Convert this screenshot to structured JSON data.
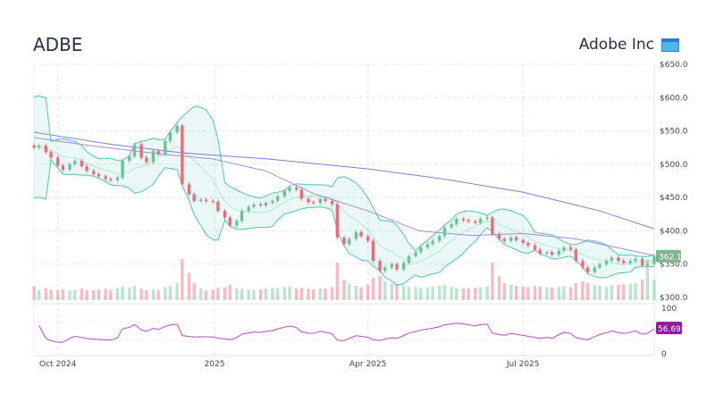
{
  "header": {
    "ticker": "ADBE",
    "company": "Adobe Inc",
    "logo_icon": "browser-window-icon"
  },
  "colors": {
    "up": "#6cc39a",
    "down": "#ec6b78",
    "band": "#4fc3b5",
    "sma_long": "#7e7ed6",
    "sma_short": "#a58ad8",
    "rsi": "#b54cc0",
    "price_badge": "#7fb590",
    "rsi_badge": "#8e1b9e"
  },
  "chart_data": {
    "type": "candlestick",
    "price_axis": {
      "ylim": [
        300,
        650
      ],
      "ticks": [
        "$300.0",
        "$350.0",
        "$400.0",
        "$450.0",
        "$500.0",
        "$550.0",
        "$600.0",
        "$650.0"
      ],
      "tick_values": [
        300,
        350,
        400,
        450,
        500,
        550,
        600,
        650
      ]
    },
    "x_axis": {
      "range": [
        "2024-09-17",
        "2025-09-16"
      ],
      "ticks": [
        {
          "label": "Oct 2024",
          "date": "2024-10-01"
        },
        {
          "label": "2025",
          "date": "2025-01-01"
        },
        {
          "label": "Apr 2025",
          "date": "2025-04-01"
        },
        {
          "label": "Jul 2025",
          "date": "2025-07-01"
        }
      ]
    },
    "grid": true,
    "last_price_label": "362.1",
    "dates": [
      "2024-09-17",
      "2024-09-20",
      "2024-09-24",
      "2024-09-27",
      "2024-10-01",
      "2024-10-04",
      "2024-10-08",
      "2024-10-11",
      "2024-10-15",
      "2024-10-18",
      "2024-10-22",
      "2024-10-25",
      "2024-10-29",
      "2024-11-01",
      "2024-11-05",
      "2024-11-08",
      "2024-11-12",
      "2024-11-15",
      "2024-11-19",
      "2024-11-22",
      "2024-11-26",
      "2024-11-29",
      "2024-12-03",
      "2024-12-06",
      "2024-12-10",
      "2024-12-13",
      "2024-12-17",
      "2024-12-20",
      "2024-12-24",
      "2024-12-27",
      "2024-12-31",
      "2025-01-03",
      "2025-01-07",
      "2025-01-10",
      "2025-01-14",
      "2025-01-17",
      "2025-01-21",
      "2025-01-24",
      "2025-01-28",
      "2025-01-31",
      "2025-02-04",
      "2025-02-07",
      "2025-02-11",
      "2025-02-14",
      "2025-02-18",
      "2025-02-21",
      "2025-02-25",
      "2025-02-28",
      "2025-03-04",
      "2025-03-07",
      "2025-03-11",
      "2025-03-14",
      "2025-03-18",
      "2025-03-21",
      "2025-03-25",
      "2025-03-28",
      "2025-04-01",
      "2025-04-04",
      "2025-04-08",
      "2025-04-11",
      "2025-04-15",
      "2025-04-18",
      "2025-04-22",
      "2025-04-25",
      "2025-04-29",
      "2025-05-02",
      "2025-05-06",
      "2025-05-09",
      "2025-05-13",
      "2025-05-16",
      "2025-05-20",
      "2025-05-23",
      "2025-05-27",
      "2025-05-30",
      "2025-06-03",
      "2025-06-06",
      "2025-06-10",
      "2025-06-13",
      "2025-06-17",
      "2025-06-20",
      "2025-06-24",
      "2025-06-27",
      "2025-07-01",
      "2025-07-04",
      "2025-07-08",
      "2025-07-11",
      "2025-07-15",
      "2025-07-18",
      "2025-07-22",
      "2025-07-25",
      "2025-07-29",
      "2025-08-01",
      "2025-08-05",
      "2025-08-08",
      "2025-08-12",
      "2025-08-15",
      "2025-08-19",
      "2025-08-22",
      "2025-08-26",
      "2025-08-29",
      "2025-09-02",
      "2025-09-05",
      "2025-09-09",
      "2025-09-12",
      "2025-09-16"
    ],
    "close": [
      525,
      528,
      518,
      510,
      498,
      492,
      500,
      505,
      497,
      490,
      485,
      482,
      478,
      476,
      480,
      505,
      512,
      530,
      510,
      503,
      520,
      515,
      535,
      548,
      558,
      470,
      455,
      445,
      447,
      445,
      444,
      430,
      420,
      408,
      415,
      430,
      436,
      440,
      438,
      442,
      445,
      452,
      460,
      465,
      462,
      448,
      443,
      442,
      448,
      445,
      440,
      390,
      380,
      388,
      398,
      392,
      385,
      355,
      340,
      345,
      350,
      342,
      352,
      362,
      368,
      375,
      380,
      385,
      392,
      405,
      410,
      418,
      416,
      414,
      412,
      418,
      420,
      395,
      388,
      385,
      390,
      386,
      382,
      378,
      372,
      366,
      368,
      364,
      370,
      375,
      372,
      355,
      345,
      338,
      345,
      350,
      355,
      360,
      355,
      352,
      355,
      358,
      348,
      350,
      362.1
    ],
    "volume": [
      4,
      3,
      3.5,
      3,
      3,
      3.2,
      2.8,
      3,
      3.4,
      3,
      2.9,
      3.1,
      3.3,
      3,
      3.5,
      4,
      3.6,
      4.2,
      3.3,
      3,
      3.2,
      2.9,
      3.8,
      4.2,
      5,
      12,
      8,
      5,
      3.5,
      2.8,
      3,
      3.6,
      3.8,
      4.5,
      3.5,
      3.3,
      3.1,
      3,
      3.2,
      3.4,
      3.6,
      3.5,
      3.8,
      4,
      3.4,
      3.6,
      3.3,
      3.2,
      3.5,
      3.4,
      3.8,
      11,
      6,
      4.8,
      4.2,
      3.8,
      4.5,
      6.5,
      7,
      5.5,
      4.8,
      4.5,
      4.2,
      4,
      3.8,
      3.6,
      3.7,
      4,
      4.2,
      4.5,
      3.8,
      3.6,
      3.4,
      3.5,
      3.6,
      3.8,
      4,
      11,
      7,
      5,
      4.5,
      4.2,
      4,
      3.8,
      4.2,
      4,
      3.8,
      3.7,
      3.9,
      4,
      3.8,
      5,
      5.5,
      5,
      4.5,
      4.2,
      4,
      4.3,
      4.5,
      4.6,
      4.8,
      5,
      6,
      12,
      6
    ],
    "sma_long": [
      [
        "2024-09-17",
        548
      ],
      [
        "2024-11-01",
        530
      ],
      [
        "2024-12-13",
        517
      ],
      [
        "2025-02-01",
        508
      ],
      [
        "2025-04-01",
        493
      ],
      [
        "2025-05-15",
        478
      ],
      [
        "2025-07-01",
        458
      ],
      [
        "2025-08-15",
        430
      ],
      [
        "2025-09-16",
        403
      ]
    ],
    "sma_short": [
      [
        "2024-09-17",
        540
      ],
      [
        "2024-10-20",
        528
      ],
      [
        "2024-12-01",
        515
      ],
      [
        "2024-12-31",
        508
      ],
      [
        "2025-01-31",
        490
      ],
      [
        "2025-03-01",
        455
      ],
      [
        "2025-04-01",
        430
      ],
      [
        "2025-05-01",
        400
      ],
      [
        "2025-06-01",
        393
      ],
      [
        "2025-07-01",
        396
      ],
      [
        "2025-08-01",
        388
      ],
      [
        "2025-09-16",
        363
      ]
    ],
    "rsi": {
      "ylim": [
        0,
        100
      ],
      "ticks": [
        "0",
        "100"
      ],
      "tick_values": [
        0,
        100
      ],
      "last_label": "56.69"
    }
  }
}
